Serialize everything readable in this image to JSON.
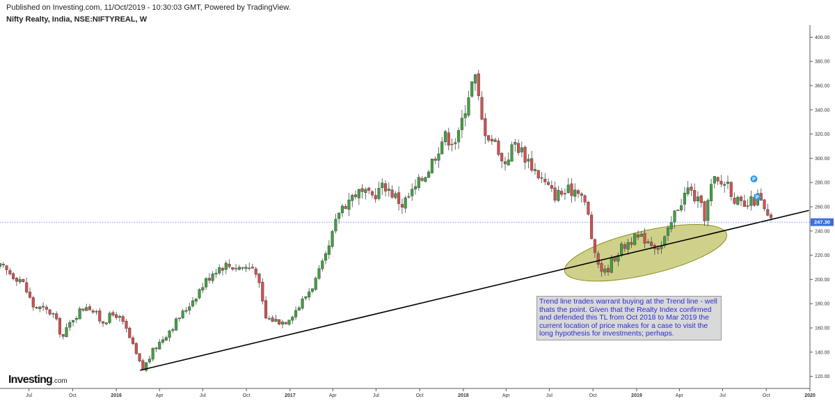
{
  "header": {
    "published": "Published on Investing.com, 11/Oct/2019 - 10:30:03 GMT, Powered by TradingView.",
    "symbol": "Nifty Realty, India, NSE:NIFTYREAL, W"
  },
  "annotation": {
    "text": "Trend line trades warrant buying at the Trend line - well thats the point. Given that the Realty Index confirmed and defended this TL from Oct 2018 to Mar 2019 the current location of price makes for a case to visit the long hypothesis for investments; perhaps."
  },
  "logo": {
    "main": "Investing",
    "suffix": ".com"
  },
  "colors": {
    "up": "#3fa13f",
    "down": "#d54f4f",
    "price_label_bg": "#3b6fd8",
    "ellipse": "#a8ab2c",
    "trendline": "#000000",
    "pin": "#2e9ce6"
  },
  "chart_data": {
    "type": "candlestick",
    "title": "Nifty Realty, India, NSE:NIFTYREAL, W",
    "ylim": [
      110,
      410
    ],
    "y_ticks": [
      120,
      140,
      160,
      180,
      200,
      220,
      240,
      260,
      280,
      300,
      320,
      340,
      360,
      380,
      400
    ],
    "y_tick_labels": [
      "120.00",
      "140.00",
      "160.00",
      "180.00",
      "200.00",
      "220.00",
      "240.00",
      "260.00",
      "280.00",
      "300.00",
      "320.00",
      "340.00",
      "360.00",
      "380.00",
      "400.00"
    ],
    "x_tick_labels": [
      "Jul",
      "Oct",
      "2016",
      "Apr",
      "Jul",
      "Oct",
      "2017",
      "Apr",
      "Jul",
      "Oct",
      "2018",
      "Apr",
      "Jul",
      "Oct",
      "2019",
      "Apr",
      "Jul",
      "Oct",
      "2020"
    ],
    "x_tick_is_year": [
      false,
      false,
      true,
      false,
      false,
      false,
      true,
      false,
      false,
      false,
      true,
      false,
      false,
      false,
      true,
      false,
      false,
      false,
      true
    ],
    "x_range": [
      "2015-05-01",
      "2020-01-01"
    ],
    "x_ticks": [
      "2015-07-01",
      "2015-10-01",
      "2016-01-01",
      "2016-04-01",
      "2016-07-01",
      "2016-10-01",
      "2017-01-01",
      "2017-04-01",
      "2017-07-01",
      "2017-10-01",
      "2018-01-01",
      "2018-04-01",
      "2018-07-01",
      "2018-10-01",
      "2019-01-01",
      "2019-04-01",
      "2019-07-01",
      "2019-10-01",
      "2020-01-01"
    ],
    "last_price": 247.3,
    "last_price_label": "247.30",
    "trendline": {
      "from": {
        "date": "2016-02-20",
        "value": 125
      },
      "to": {
        "date": "2019-12-30",
        "value": 257
      }
    },
    "ellipse": {
      "center": {
        "date": "2019-01-20",
        "value": 222
      },
      "half_width_weeks": 25,
      "half_height_value": 18
    },
    "markers": [
      {
        "date": "2019-09-05",
        "value": 283,
        "label": "P"
      },
      {
        "date": "2019-09-12",
        "value": 268,
        "label": "P"
      }
    ],
    "anchors": [
      [
        "2015-05-01",
        210
      ],
      [
        "2015-06-15",
        200
      ],
      [
        "2015-07-10",
        178
      ],
      [
        "2015-08-20",
        172
      ],
      [
        "2015-09-10",
        152
      ],
      [
        "2015-10-01",
        168
      ],
      [
        "2015-11-01",
        180
      ],
      [
        "2015-12-01",
        165
      ],
      [
        "2015-12-31",
        172
      ],
      [
        "2016-01-20",
        160
      ],
      [
        "2016-02-25",
        125
      ],
      [
        "2016-03-20",
        142
      ],
      [
        "2016-04-25",
        160
      ],
      [
        "2016-05-20",
        172
      ],
      [
        "2016-06-25",
        192
      ],
      [
        "2016-07-25",
        208
      ],
      [
        "2016-08-15",
        212
      ],
      [
        "2016-09-20",
        210
      ],
      [
        "2016-10-20",
        210
      ],
      [
        "2016-11-10",
        168
      ],
      [
        "2016-12-20",
        165
      ],
      [
        "2017-01-20",
        178
      ],
      [
        "2017-02-25",
        200
      ],
      [
        "2017-03-20",
        220
      ],
      [
        "2017-04-15",
        258
      ],
      [
        "2017-05-20",
        272
      ],
      [
        "2017-06-20",
        268
      ],
      [
        "2017-07-20",
        278
      ],
      [
        "2017-08-25",
        262
      ],
      [
        "2017-09-20",
        274
      ],
      [
        "2017-10-20",
        292
      ],
      [
        "2017-11-20",
        318
      ],
      [
        "2017-12-20",
        315
      ],
      [
        "2018-01-10",
        352
      ],
      [
        "2018-01-25",
        368
      ],
      [
        "2018-02-10",
        328
      ],
      [
        "2018-02-25",
        318
      ],
      [
        "2018-03-15",
        310
      ],
      [
        "2018-03-25",
        294
      ],
      [
        "2018-04-20",
        313
      ],
      [
        "2018-05-15",
        300
      ],
      [
        "2018-06-20",
        280
      ],
      [
        "2018-07-10",
        270
      ],
      [
        "2018-08-05",
        272
      ],
      [
        "2018-09-01",
        276
      ],
      [
        "2018-09-20",
        255
      ],
      [
        "2018-10-05",
        218
      ],
      [
        "2018-10-25",
        205
      ],
      [
        "2018-11-20",
        222
      ],
      [
        "2018-12-20",
        233
      ],
      [
        "2019-01-20",
        234
      ],
      [
        "2019-02-20",
        226
      ],
      [
        "2019-03-10",
        240
      ],
      [
        "2019-03-25",
        258
      ],
      [
        "2019-04-20",
        275
      ],
      [
        "2019-05-10",
        264
      ],
      [
        "2019-05-25",
        252
      ],
      [
        "2019-06-10",
        282
      ],
      [
        "2019-06-25",
        278
      ],
      [
        "2019-07-10",
        282
      ],
      [
        "2019-07-25",
        268
      ],
      [
        "2019-08-15",
        257
      ],
      [
        "2019-08-25",
        262
      ],
      [
        "2019-09-15",
        268
      ],
      [
        "2019-10-01",
        252
      ],
      [
        "2019-10-11",
        247
      ]
    ]
  }
}
